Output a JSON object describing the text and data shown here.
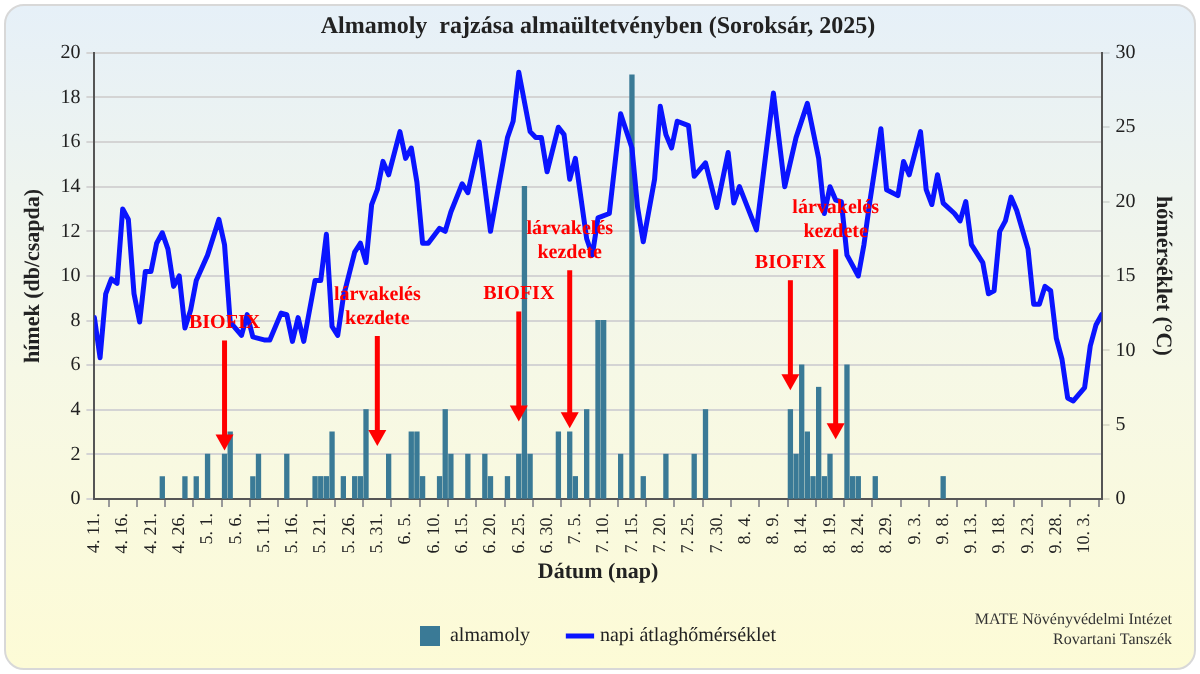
{
  "chart_data": {
    "type": "bar",
    "title": "Almamoly  rajzása almaültetvényben (Soroksár, 2025)",
    "xlabel": "Dátum (nap)",
    "ylabel": "hímek (db/csapda)",
    "y2label": "hőmérséklet (°C)",
    "xlim": [
      "--04-11",
      "--10-06"
    ],
    "xticks": [
      {
        "value": "--04-11",
        "label": "4. 11."
      },
      {
        "value": "--04-16",
        "label": "4. 16."
      },
      {
        "value": "--04-21",
        "label": "4. 21."
      },
      {
        "value": "--04-26",
        "label": "4. 26."
      },
      {
        "value": "--05-01",
        "label": "5. 1."
      },
      {
        "value": "--05-06",
        "label": "5. 6."
      },
      {
        "value": "--05-11",
        "label": "5. 11."
      },
      {
        "value": "--05-16",
        "label": "5. 16."
      },
      {
        "value": "--05-21",
        "label": "5. 21."
      },
      {
        "value": "--05-26",
        "label": "5. 26."
      },
      {
        "value": "--05-31",
        "label": "5. 31."
      },
      {
        "value": "--06-05",
        "label": "6. 5."
      },
      {
        "value": "--06-10",
        "label": "6. 10."
      },
      {
        "value": "--06-15",
        "label": "6. 15."
      },
      {
        "value": "--06-20",
        "label": "6. 20."
      },
      {
        "value": "--06-25",
        "label": "6. 25."
      },
      {
        "value": "--06-30",
        "label": "6. 30."
      },
      {
        "value": "--07-05",
        "label": "7. 5."
      },
      {
        "value": "--07-10",
        "label": "7. 10."
      },
      {
        "value": "--07-15",
        "label": "7. 15."
      },
      {
        "value": "--07-20",
        "label": "7. 20."
      },
      {
        "value": "--07-25",
        "label": "7. 25."
      },
      {
        "value": "--07-30",
        "label": "7. 30."
      },
      {
        "value": "--08-04",
        "label": "8. 4."
      },
      {
        "value": "--08-09",
        "label": "8. 9."
      },
      {
        "value": "--08-14",
        "label": "8. 14."
      },
      {
        "value": "--08-19",
        "label": "8. 19."
      },
      {
        "value": "--08-24",
        "label": "8. 24."
      },
      {
        "value": "--08-29",
        "label": "8. 29."
      },
      {
        "value": "--09-03",
        "label": "9. 3."
      },
      {
        "value": "--09-08",
        "label": "9. 8."
      },
      {
        "value": "--09-13",
        "label": "9. 13."
      },
      {
        "value": "--09-18",
        "label": "9. 18."
      },
      {
        "value": "--09-23",
        "label": "9. 23."
      },
      {
        "value": "--09-28",
        "label": "9. 28."
      },
      {
        "value": "--10-03",
        "label": "10. 3."
      }
    ],
    "ylim": [
      0,
      20
    ],
    "yticks": [
      0,
      2,
      4,
      6,
      8,
      10,
      12,
      14,
      16,
      18,
      20
    ],
    "y2lim": [
      0,
      30
    ],
    "y2ticks": [
      0,
      5,
      10,
      15,
      20,
      25,
      30
    ],
    "grid": "y",
    "legend": "bottom",
    "marker": "none",
    "series": [
      {
        "name": "almamoly",
        "color": "#3a7a96",
        "x": [
          "--04-23",
          "--04-27",
          "--04-29",
          "--05-01",
          "--05-04",
          "--05-05",
          "--05-09",
          "--05-10",
          "--05-15",
          "--05-20",
          "--05-21",
          "--05-22",
          "--05-23",
          "--05-25",
          "--05-27",
          "--05-28",
          "--05-29",
          "--06-02",
          "--06-06",
          "--06-07",
          "--06-08",
          "--06-11",
          "--06-12",
          "--06-13",
          "--06-16",
          "--06-19",
          "--06-20",
          "--06-23",
          "--06-25",
          "--06-26",
          "--06-27",
          "--07-02",
          "--07-04",
          "--07-05",
          "--07-07",
          "--07-09",
          "--07-10",
          "--07-13",
          "--07-15",
          "--07-17",
          "--07-21",
          "--07-26",
          "--07-28",
          "--08-12",
          "--08-13",
          "--08-14",
          "--08-15",
          "--08-16",
          "--08-17",
          "--08-18",
          "--08-19",
          "--08-22",
          "--08-23",
          "--08-24",
          "--08-27",
          "--09-08"
        ],
        "values": [
          1,
          1,
          1,
          2,
          2,
          3,
          1,
          2,
          2,
          1,
          1,
          1,
          3,
          1,
          1,
          1,
          4,
          2,
          3,
          3,
          1,
          1,
          4,
          2,
          2,
          2,
          1,
          1,
          2,
          14,
          2,
          3,
          3,
          1,
          4,
          8,
          8,
          2,
          19,
          1,
          2,
          2,
          4,
          4,
          2,
          6,
          3,
          1,
          5,
          1,
          2,
          6,
          1,
          1,
          1,
          1
        ]
      },
      {
        "name": "napi átlaghőmérséklet",
        "type": "line",
        "axis": "y2",
        "color": "#0a14ff",
        "x": [
          "--04-11",
          "--04-12",
          "--04-13",
          "--04-14",
          "--04-15",
          "--04-16",
          "--04-17",
          "--04-18",
          "--04-19",
          "--04-20",
          "--04-21",
          "--04-22",
          "--04-23",
          "--04-24",
          "--04-25",
          "--04-26",
          "--04-27",
          "--04-28",
          "--04-29",
          "--05-01",
          "--05-03",
          "--05-04",
          "--05-05",
          "--05-07",
          "--05-08",
          "--05-09",
          "--05-11",
          "--05-12",
          "--05-14",
          "--05-15",
          "--05-16",
          "--05-17",
          "--05-18",
          "--05-20",
          "--05-21",
          "--05-22",
          "--05-23",
          "--05-24",
          "--05-25",
          "--05-27",
          "--05-28",
          "--05-29",
          "--05-30",
          "--05-31",
          "--06-01",
          "--06-02",
          "--06-04",
          "--06-05",
          "--06-06",
          "--06-07",
          "--06-08",
          "--06-09",
          "--06-11",
          "--06-12",
          "--06-13",
          "--06-15",
          "--06-16",
          "--06-18",
          "--06-20",
          "--06-23",
          "--06-24",
          "--06-25",
          "--06-27",
          "--06-28",
          "--06-29",
          "--06-30",
          "--07-02",
          "--07-03",
          "--07-04",
          "--07-05",
          "--07-07",
          "--07-08",
          "--07-09",
          "--07-11",
          "--07-13",
          "--07-15",
          "--07-16",
          "--07-17",
          "--07-19",
          "--07-20",
          "--07-21",
          "--07-22",
          "--07-23",
          "--07-25",
          "--07-26",
          "--07-28",
          "--07-30",
          "--08-01",
          "--08-02",
          "--08-03",
          "--08-06",
          "--08-09",
          "--08-11",
          "--08-13",
          "--08-15",
          "--08-17",
          "--08-18",
          "--08-19",
          "--08-20",
          "--08-21",
          "--08-22",
          "--08-24",
          "--08-25",
          "--08-26",
          "--08-28",
          "--08-29",
          "--08-31",
          "--09-01",
          "--09-02",
          "--09-04",
          "--09-05",
          "--09-06",
          "--09-07",
          "--09-08",
          "--09-10",
          "--09-11",
          "--09-12",
          "--09-13",
          "--09-15",
          "--09-16",
          "--09-17",
          "--09-18",
          "--09-19",
          "--09-20",
          "--09-21",
          "--09-23",
          "--09-24",
          "--09-25",
          "--09-26",
          "--09-27",
          "--09-28",
          "--09-29",
          "--09-30",
          "--10-01",
          "--10-03",
          "--10-04",
          "--10-05",
          "--10-06"
        ],
        "values": [
          12.2,
          9.5,
          13.8,
          14.8,
          14.5,
          19.5,
          18.8,
          13.8,
          11.9,
          15.3,
          15.3,
          17.2,
          17.9,
          16.8,
          14.3,
          15.0,
          11.5,
          12.7,
          14.7,
          16.4,
          18.8,
          17.1,
          11.9,
          11.0,
          12.4,
          10.9,
          10.7,
          10.7,
          12.5,
          12.4,
          10.6,
          12.2,
          10.6,
          14.7,
          14.7,
          17.8,
          11.6,
          11.0,
          13.6,
          16.6,
          17.2,
          15.9,
          19.8,
          20.8,
          22.7,
          21.8,
          24.7,
          22.9,
          23.6,
          21.3,
          17.2,
          17.2,
          18.2,
          18.0,
          19.3,
          21.2,
          20.6,
          24.0,
          18.0,
          24.3,
          25.4,
          28.7,
          24.7,
          24.3,
          24.3,
          22.0,
          25.0,
          24.5,
          21.5,
          22.9,
          17.5,
          16.4,
          18.9,
          19.2,
          25.9,
          23.6,
          19.6,
          17.3,
          21.5,
          26.4,
          24.5,
          23.6,
          25.4,
          25.1,
          21.7,
          22.6,
          19.6,
          23.3,
          19.9,
          21.0,
          18.1,
          27.3,
          21.0,
          24.3,
          26.6,
          22.9,
          19.2,
          21.0,
          20.1,
          20.0,
          16.4,
          15.0,
          17.1,
          19.9,
          24.9,
          20.8,
          20.4,
          22.7,
          21.8,
          24.7,
          20.8,
          19.8,
          21.8,
          19.9,
          19.2,
          18.7,
          20.0,
          17.1,
          15.9,
          13.8,
          14.0,
          18.0,
          18.7,
          20.3,
          19.4,
          16.8,
          13.1,
          13.1,
          14.3,
          14.0,
          10.8,
          9.4,
          6.8,
          6.6,
          7.5,
          10.3,
          11.7,
          12.4
        ]
      }
    ],
    "annotations": [
      {
        "text": "BIOFIX",
        "x": "--05-04",
        "y": 2
      },
      {
        "text": "lárvakelés kezdete",
        "x": "--05-31",
        "y": 2.2
      },
      {
        "text": "BIOFIX",
        "x": "--06-25",
        "y": 3.3
      },
      {
        "text": "lárvakelés kezdete",
        "x": "--07-04",
        "y": 3
      },
      {
        "text": "BIOFIX",
        "x": "--08-12",
        "y": 4.7
      },
      {
        "text": "lárvakelés kezdete",
        "x": "--08-20",
        "y": 2.5
      },
      "MATE Növényvédelmi Intézet",
      "Rovartani Tanszék"
    ]
  }
}
